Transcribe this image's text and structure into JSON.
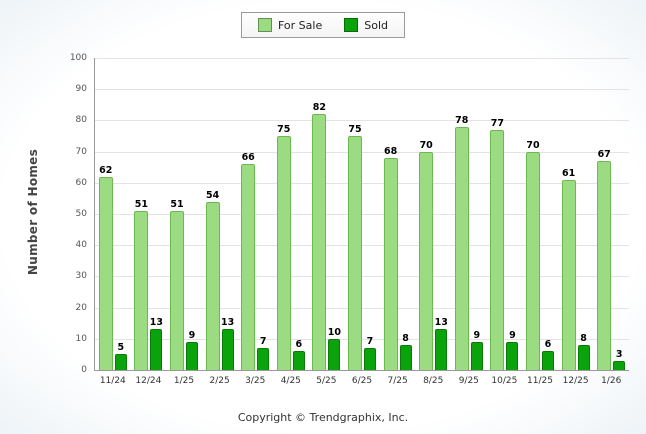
{
  "chart_data": {
    "type": "bar",
    "title": "",
    "categories": [
      "11/24",
      "12/24",
      "1/25",
      "2/25",
      "3/25",
      "4/25",
      "5/25",
      "6/25",
      "7/25",
      "8/25",
      "9/25",
      "10/25",
      "11/25",
      "12/25",
      "1/26"
    ],
    "series": [
      {
        "name": "For Sale",
        "color": "#9bdb82",
        "border_color": "#6db951",
        "values": [
          62,
          51,
          51,
          54,
          66,
          75,
          82,
          75,
          68,
          70,
          78,
          77,
          70,
          61,
          67
        ]
      },
      {
        "name": "Sold",
        "color": "#0ba30b",
        "border_color": "#077d07",
        "values": [
          5,
          13,
          9,
          13,
          7,
          6,
          10,
          7,
          8,
          13,
          9,
          9,
          6,
          8,
          3
        ]
      }
    ],
    "xlabel": "",
    "ylabel": "Number of Homes",
    "ylim": [
      0,
      100
    ],
    "ytick_step": 10,
    "grid": true,
    "legend_position": "top-center"
  },
  "footer": {
    "copyright": "Copyright © Trendgraphix, Inc."
  }
}
